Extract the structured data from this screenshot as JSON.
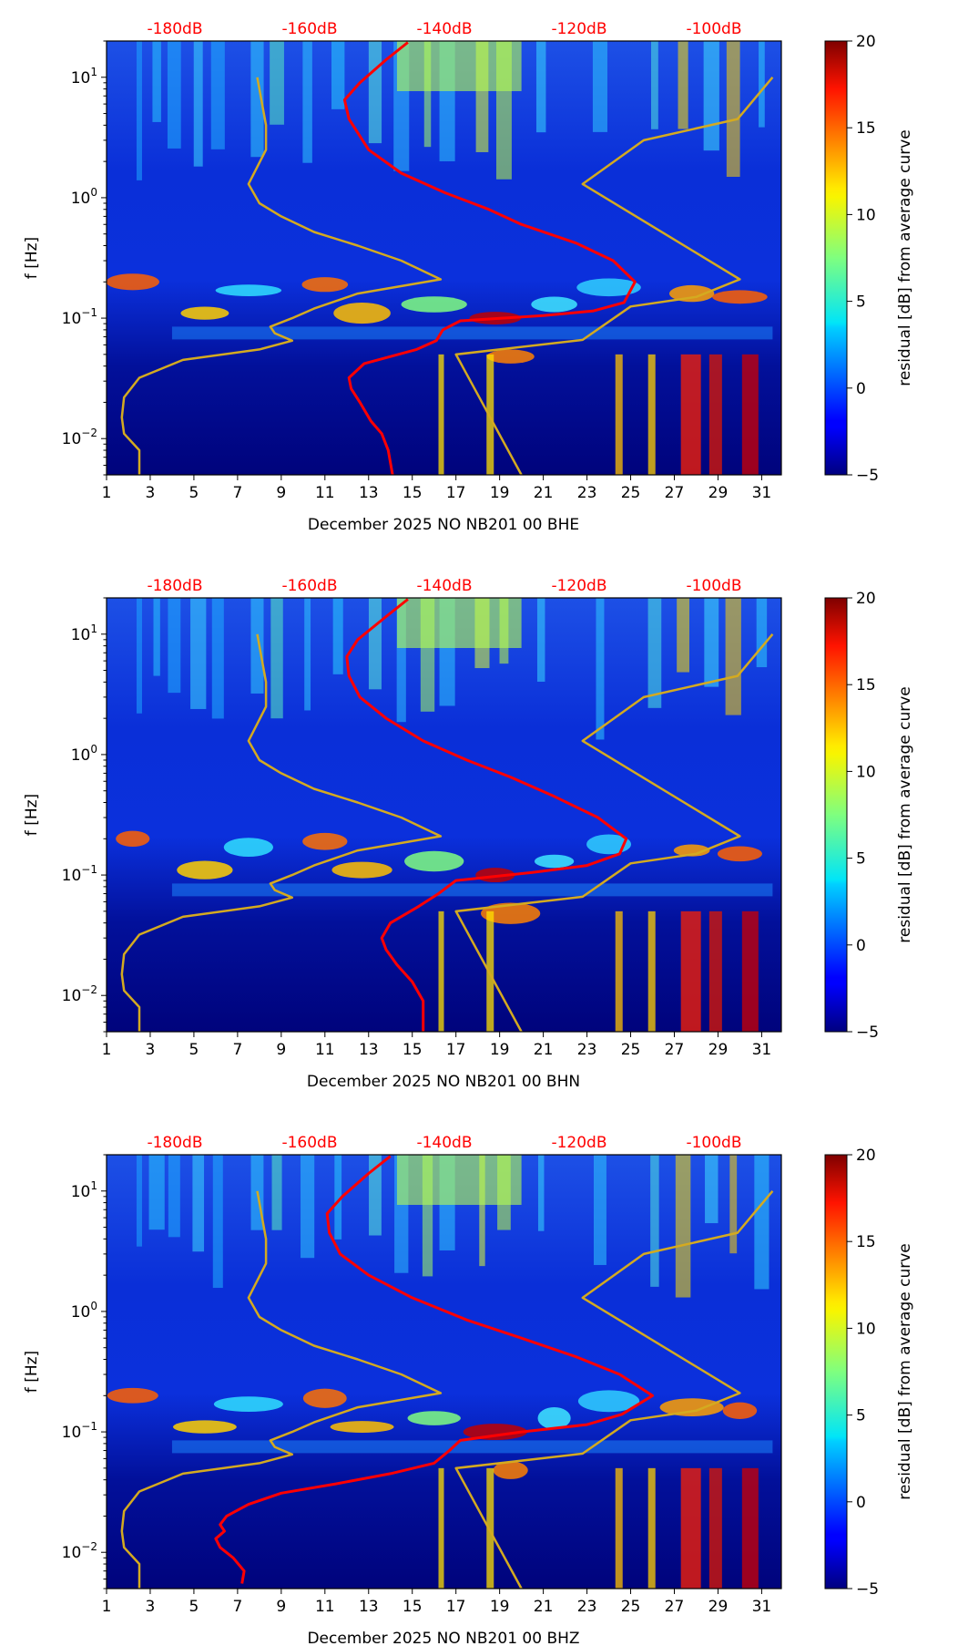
{
  "chart_data": [
    {
      "type": "heatmap",
      "xlabel": "December 2025 NO NB201 00 BHE",
      "ylabel": "f [Hz]",
      "x_ticks": [
        "1",
        "3",
        "5",
        "7",
        "9",
        "11",
        "13",
        "15",
        "17",
        "19",
        "21",
        "23",
        "25",
        "27",
        "29",
        "31"
      ],
      "y_ticks": [
        "10^-2",
        "10^-1",
        "10^0",
        "10^1"
      ],
      "y_scale": "log",
      "xlim": [
        1,
        31.9
      ],
      "ylim": [
        0.005,
        20
      ],
      "top_labels": [
        "-180dB",
        "-160dB",
        "-140dB",
        "-120dB",
        "-100dB"
      ],
      "colorbar": {
        "label": "residual [dB] from average curve",
        "ticks": [
          "20",
          "15",
          "10",
          "5",
          "0",
          "−5"
        ],
        "range": [
          -5,
          20
        ],
        "colormap": "jet"
      },
      "series": [
        {
          "color": "#ff0000",
          "points": [
            [
              14.1,
              0.005
            ],
            [
              13.9,
              0.008
            ],
            [
              13.6,
              0.011
            ],
            [
              13.1,
              0.014
            ],
            [
              12.6,
              0.02
            ],
            [
              12.2,
              0.026
            ],
            [
              12.1,
              0.032
            ],
            [
              12.8,
              0.042
            ],
            [
              15.2,
              0.055
            ],
            [
              16.1,
              0.065
            ],
            [
              16.4,
              0.08
            ],
            [
              17.2,
              0.095
            ],
            [
              21,
              0.105
            ],
            [
              23.3,
              0.115
            ],
            [
              24.7,
              0.135
            ],
            [
              25.2,
              0.2
            ],
            [
              24.2,
              0.3
            ],
            [
              22.5,
              0.42
            ],
            [
              20,
              0.6
            ],
            [
              18.5,
              0.8
            ],
            [
              16.5,
              1.1
            ],
            [
              14.5,
              1.6
            ],
            [
              13,
              2.5
            ],
            [
              12.1,
              4.5
            ],
            [
              11.9,
              6.5
            ],
            [
              12.6,
              9
            ],
            [
              13.8,
              14
            ],
            [
              14.8,
              19.5
            ]
          ]
        },
        {
          "color": "#d4aa20",
          "points": [
            [
              2.5,
              0.005
            ],
            [
              2.5,
              0.008
            ],
            [
              1.8,
              0.011
            ],
            [
              1.7,
              0.015
            ],
            [
              1.8,
              0.022
            ],
            [
              2.5,
              0.032
            ],
            [
              4.5,
              0.045
            ],
            [
              8,
              0.055
            ],
            [
              9.5,
              0.065
            ],
            [
              8.7,
              0.075
            ],
            [
              8.5,
              0.085
            ],
            [
              9.5,
              0.1
            ],
            [
              10.5,
              0.12
            ],
            [
              12.5,
              0.16
            ],
            [
              16.3,
              0.21
            ],
            [
              14.5,
              0.3
            ],
            [
              12.5,
              0.4
            ],
            [
              10.5,
              0.52
            ],
            [
              9,
              0.7
            ],
            [
              8,
              0.9
            ],
            [
              7.5,
              1.3
            ],
            [
              8.3,
              2.5
            ],
            [
              8.3,
              4
            ],
            [
              7.9,
              10
            ]
          ]
        },
        {
          "color": "#d4aa20",
          "points": [
            [
              20,
              0.005
            ],
            [
              17,
              0.05
            ],
            [
              22.8,
              0.066
            ],
            [
              25,
              0.125
            ],
            [
              28,
              0.15
            ],
            [
              30,
              0.21
            ],
            [
              22.8,
              1.3
            ],
            [
              25.6,
              3
            ],
            [
              29.9,
              4.5
            ],
            [
              31.5,
              10
            ]
          ]
        }
      ]
    },
    {
      "type": "heatmap",
      "xlabel": "December 2025 NO NB201 00 BHN",
      "ylabel": "f [Hz]",
      "x_ticks": [
        "1",
        "3",
        "5",
        "7",
        "9",
        "11",
        "13",
        "15",
        "17",
        "19",
        "21",
        "23",
        "25",
        "27",
        "29",
        "31"
      ],
      "y_ticks": [
        "10^-2",
        "10^-1",
        "10^0",
        "10^1"
      ],
      "y_scale": "log",
      "xlim": [
        1,
        31.9
      ],
      "ylim": [
        0.005,
        20
      ],
      "top_labels": [
        "-180dB",
        "-160dB",
        "-140dB",
        "-120dB",
        "-100dB"
      ],
      "colorbar": {
        "label": "residual [dB] from average curve",
        "ticks": [
          "20",
          "15",
          "10",
          "5",
          "0",
          "−5"
        ],
        "range": [
          -5,
          20
        ],
        "colormap": "jet"
      },
      "series": [
        {
          "color": "#ff0000",
          "points": [
            [
              15.5,
              0.005
            ],
            [
              15.5,
              0.009
            ],
            [
              15,
              0.013
            ],
            [
              14.3,
              0.018
            ],
            [
              13.8,
              0.024
            ],
            [
              13.6,
              0.03
            ],
            [
              14,
              0.04
            ],
            [
              15.3,
              0.055
            ],
            [
              16.2,
              0.07
            ],
            [
              17,
              0.09
            ],
            [
              20.5,
              0.105
            ],
            [
              23,
              0.12
            ],
            [
              24.5,
              0.15
            ],
            [
              24.8,
              0.2
            ],
            [
              23.5,
              0.3
            ],
            [
              21.5,
              0.45
            ],
            [
              19.5,
              0.65
            ],
            [
              17.5,
              0.9
            ],
            [
              15.5,
              1.3
            ],
            [
              13.8,
              2
            ],
            [
              12.6,
              3
            ],
            [
              12.1,
              4.5
            ],
            [
              12,
              6.5
            ],
            [
              12.5,
              9
            ],
            [
              13.8,
              14
            ],
            [
              14.8,
              19.5
            ]
          ]
        },
        {
          "color": "#d4aa20",
          "points": [
            [
              2.5,
              0.005
            ],
            [
              2.5,
              0.008
            ],
            [
              1.8,
              0.011
            ],
            [
              1.7,
              0.015
            ],
            [
              1.8,
              0.022
            ],
            [
              2.5,
              0.032
            ],
            [
              4.5,
              0.045
            ],
            [
              8,
              0.055
            ],
            [
              9.5,
              0.065
            ],
            [
              8.7,
              0.075
            ],
            [
              8.5,
              0.085
            ],
            [
              9.5,
              0.1
            ],
            [
              10.5,
              0.12
            ],
            [
              12.5,
              0.16
            ],
            [
              16.3,
              0.21
            ],
            [
              14.5,
              0.3
            ],
            [
              12.5,
              0.4
            ],
            [
              10.5,
              0.52
            ],
            [
              9,
              0.7
            ],
            [
              8,
              0.9
            ],
            [
              7.5,
              1.3
            ],
            [
              8.3,
              2.5
            ],
            [
              8.3,
              4
            ],
            [
              7.9,
              10
            ]
          ]
        },
        {
          "color": "#d4aa20",
          "points": [
            [
              20,
              0.005
            ],
            [
              17,
              0.05
            ],
            [
              22.8,
              0.066
            ],
            [
              25,
              0.125
            ],
            [
              28,
              0.15
            ],
            [
              30,
              0.21
            ],
            [
              22.8,
              1.3
            ],
            [
              25.6,
              3
            ],
            [
              29.9,
              4.5
            ],
            [
              31.5,
              10
            ]
          ]
        }
      ]
    },
    {
      "type": "heatmap",
      "xlabel": "December 2025 NO NB201 00 BHZ",
      "ylabel": "f [Hz]",
      "x_ticks": [
        "1",
        "3",
        "5",
        "7",
        "9",
        "11",
        "13",
        "15",
        "17",
        "19",
        "21",
        "23",
        "25",
        "27",
        "29",
        "31"
      ],
      "y_ticks": [
        "10^-2",
        "10^-1",
        "10^0",
        "10^1"
      ],
      "y_scale": "log",
      "xlim": [
        1,
        31.9
      ],
      "ylim": [
        0.005,
        20
      ],
      "top_labels": [
        "-180dB",
        "-160dB",
        "-140dB",
        "-120dB",
        "-100dB"
      ],
      "colorbar": {
        "label": "residual [dB] from average curve",
        "ticks": [
          "20",
          "15",
          "10",
          "5",
          "0",
          "−5"
        ],
        "range": [
          -5,
          20
        ],
        "colormap": "jet"
      },
      "series": [
        {
          "color": "#ff0000",
          "points": [
            [
              7.2,
              0.0055
            ],
            [
              7.3,
              0.007
            ],
            [
              6.8,
              0.009
            ],
            [
              6.2,
              0.011
            ],
            [
              6,
              0.013
            ],
            [
              6.4,
              0.015
            ],
            [
              6.2,
              0.017
            ],
            [
              6.5,
              0.02
            ],
            [
              7.5,
              0.025
            ],
            [
              9,
              0.031
            ],
            [
              11.5,
              0.037
            ],
            [
              14,
              0.045
            ],
            [
              16,
              0.055
            ],
            [
              16.7,
              0.07
            ],
            [
              17.2,
              0.085
            ],
            [
              20,
              0.1
            ],
            [
              23,
              0.115
            ],
            [
              24.6,
              0.14
            ],
            [
              26,
              0.2
            ],
            [
              24.5,
              0.3
            ],
            [
              22.5,
              0.42
            ],
            [
              20,
              0.6
            ],
            [
              17.5,
              0.85
            ],
            [
              15,
              1.3
            ],
            [
              13,
              2
            ],
            [
              11.7,
              3
            ],
            [
              11.2,
              4.5
            ],
            [
              11.1,
              6.5
            ],
            [
              11.8,
              9
            ],
            [
              13,
              14
            ],
            [
              14,
              19.5
            ]
          ]
        },
        {
          "color": "#d4aa20",
          "points": [
            [
              2.5,
              0.005
            ],
            [
              2.5,
              0.008
            ],
            [
              1.8,
              0.011
            ],
            [
              1.7,
              0.015
            ],
            [
              1.8,
              0.022
            ],
            [
              2.5,
              0.032
            ],
            [
              4.5,
              0.045
            ],
            [
              8,
              0.055
            ],
            [
              9.5,
              0.065
            ],
            [
              8.7,
              0.075
            ],
            [
              8.5,
              0.085
            ],
            [
              9.5,
              0.1
            ],
            [
              10.5,
              0.12
            ],
            [
              12.5,
              0.16
            ],
            [
              16.3,
              0.21
            ],
            [
              14.5,
              0.3
            ],
            [
              12.5,
              0.4
            ],
            [
              10.5,
              0.52
            ],
            [
              9,
              0.7
            ],
            [
              8,
              0.9
            ],
            [
              7.5,
              1.3
            ],
            [
              8.3,
              2.5
            ],
            [
              8.3,
              4
            ],
            [
              7.9,
              10
            ]
          ]
        },
        {
          "color": "#d4aa20",
          "points": [
            [
              20,
              0.005
            ],
            [
              17,
              0.05
            ],
            [
              22.8,
              0.066
            ],
            [
              25,
              0.125
            ],
            [
              28,
              0.15
            ],
            [
              30,
              0.21
            ],
            [
              22.8,
              1.3
            ],
            [
              25.6,
              3
            ],
            [
              29.9,
              4.5
            ],
            [
              31.5,
              10
            ]
          ]
        }
      ]
    }
  ]
}
